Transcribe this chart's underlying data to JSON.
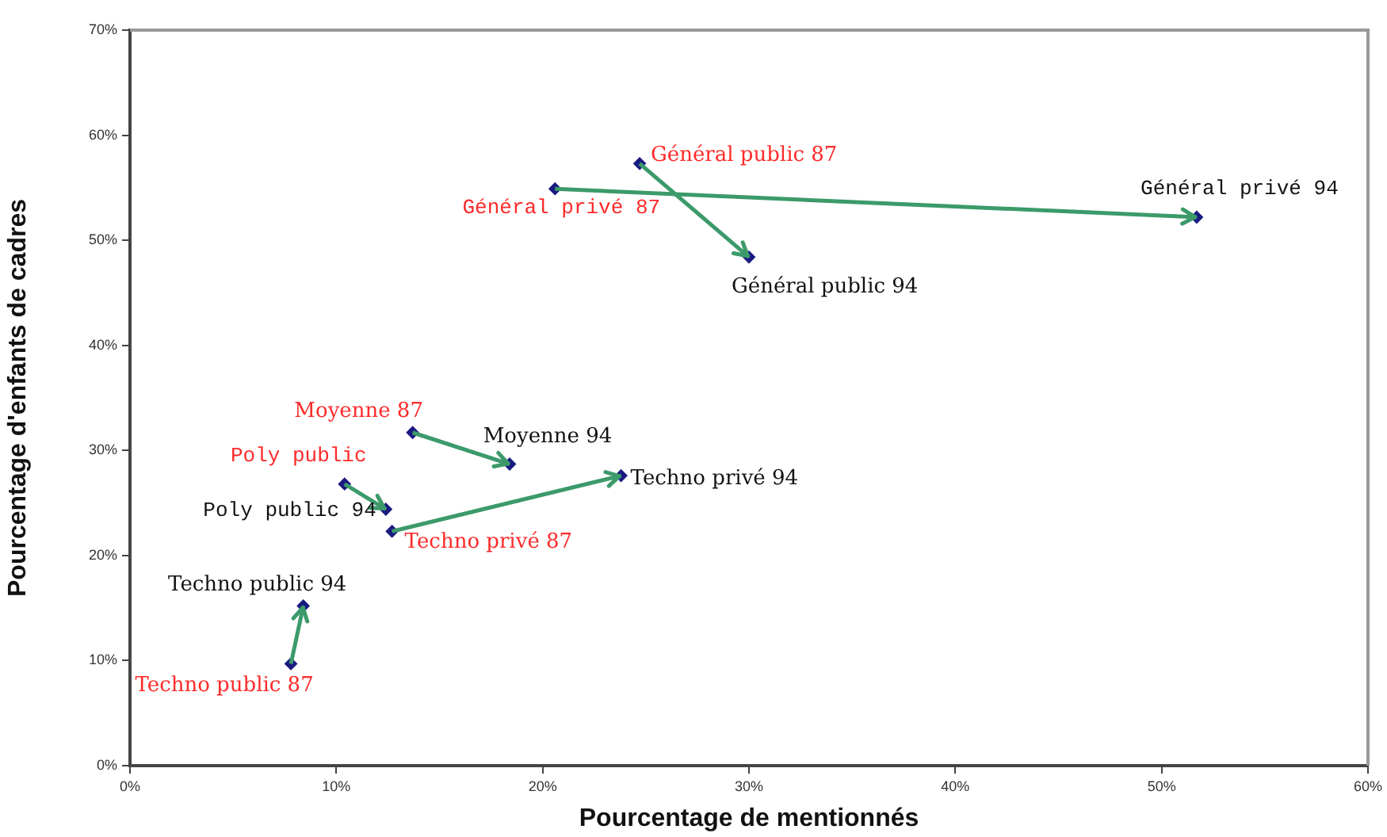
{
  "chart_data": {
    "type": "scatter",
    "xlabel": "Pourcentage de mentionnés",
    "ylabel": "Pourcentage d'enfants de cadres",
    "xlim": [
      0,
      60
    ],
    "ylim": [
      0,
      70
    ],
    "xticks": [
      {
        "value": 0,
        "label": "0%"
      },
      {
        "value": 10,
        "label": "10%"
      },
      {
        "value": 20,
        "label": "20%"
      },
      {
        "value": 30,
        "label": "30%"
      },
      {
        "value": 40,
        "label": "40%"
      },
      {
        "value": 50,
        "label": "50%"
      },
      {
        "value": 60,
        "label": "60%"
      }
    ],
    "yticks": [
      {
        "value": 0,
        "label": "0%"
      },
      {
        "value": 10,
        "label": "10%"
      },
      {
        "value": 20,
        "label": "20%"
      },
      {
        "value": 30,
        "label": "30%"
      },
      {
        "value": 40,
        "label": "40%"
      },
      {
        "value": 50,
        "label": "50%"
      },
      {
        "value": 60,
        "label": "60%"
      },
      {
        "value": 70,
        "label": "70%"
      }
    ],
    "grid": false,
    "legend": false,
    "series": [
      {
        "type": "line",
        "marker": "none",
        "color": "#3c9a6a",
        "x": [
          24.7,
          30.0
        ],
        "values": [
          57.3,
          48.4
        ]
      },
      {
        "type": "line",
        "marker": "none",
        "color": "#3c9a6a",
        "x": [
          20.6,
          51.7
        ],
        "values": [
          54.9,
          52.2
        ]
      },
      {
        "type": "line",
        "marker": "none",
        "color": "#3c9a6a",
        "x": [
          13.7,
          18.4
        ],
        "values": [
          31.7,
          28.7
        ]
      },
      {
        "type": "line",
        "marker": "none",
        "color": "#3c9a6a",
        "x": [
          10.4,
          12.4
        ],
        "values": [
          26.8,
          24.4
        ]
      },
      {
        "type": "line",
        "marker": "none",
        "color": "#3c9a6a",
        "x": [
          12.7,
          23.8
        ],
        "values": [
          22.3,
          27.6
        ]
      },
      {
        "type": "line",
        "marker": "none",
        "color": "#3c9a6a",
        "x": [
          7.8,
          8.4
        ],
        "values": [
          9.7,
          15.2
        ]
      },
      {
        "marker": "diamond",
        "color": "#1a1a80",
        "x": [
          24.7,
          20.6,
          13.7,
          10.4,
          12.7,
          7.8
        ],
        "values": [
          57.3,
          54.9,
          31.7,
          26.8,
          22.3,
          9.7
        ],
        "value_labels": [
          "Général public 87",
          "Général privé 87",
          "Moyenne 87",
          "Poly public",
          "Techno privé 87",
          "Techno public 87"
        ]
      },
      {
        "marker": "diamond",
        "color": "#1a1a80",
        "x": [
          30.0,
          51.7,
          18.4,
          12.4,
          23.8,
          8.4
        ],
        "values": [
          48.4,
          52.2,
          28.7,
          24.4,
          27.6,
          15.2
        ],
        "value_labels": [
          "Général public 94",
          "Général privé 94",
          "Moyenne 94",
          "Poly public 94",
          "Techno privé 94",
          "Techno public 94"
        ]
      }
    ]
  }
}
